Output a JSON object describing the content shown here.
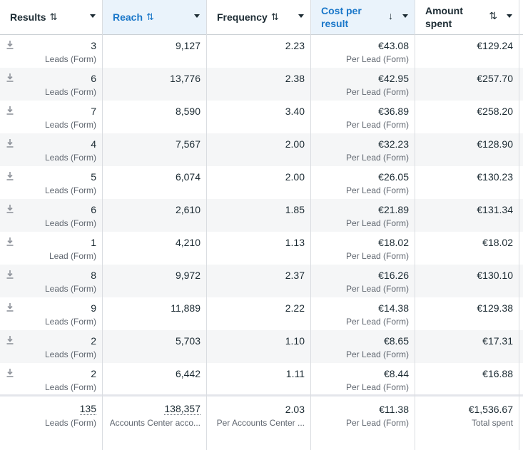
{
  "colors": {
    "accent": "#1a77c9",
    "sorted_bg": "#eaf3fb",
    "alt_row": "#f5f6f7"
  },
  "columns": {
    "results": {
      "label": "Results",
      "sort_icon": "⇅"
    },
    "reach": {
      "label": "Reach",
      "sort_icon": "⇅"
    },
    "frequency": {
      "label": "Frequency",
      "sort_icon": "⇅"
    },
    "cost_per_result": {
      "label_line1": "Cost per",
      "label_line2": "result",
      "sort_icon": "↓"
    },
    "amount_spent": {
      "label_line1": "Amount",
      "label_line2": "spent",
      "sort_icon": "⇅"
    }
  },
  "rows": [
    {
      "results": "3",
      "results_type": "Leads (Form)",
      "reach": "9,127",
      "frequency": "2.23",
      "cost": "€43.08",
      "cost_type": "Per Lead (Form)",
      "spent": "€129.24"
    },
    {
      "results": "6",
      "results_type": "Leads (Form)",
      "reach": "13,776",
      "frequency": "2.38",
      "cost": "€42.95",
      "cost_type": "Per Lead (Form)",
      "spent": "€257.70"
    },
    {
      "results": "7",
      "results_type": "Leads (Form)",
      "reach": "8,590",
      "frequency": "3.40",
      "cost": "€36.89",
      "cost_type": "Per Lead (Form)",
      "spent": "€258.20"
    },
    {
      "results": "4",
      "results_type": "Leads (Form)",
      "reach": "7,567",
      "frequency": "2.00",
      "cost": "€32.23",
      "cost_type": "Per Lead (Form)",
      "spent": "€128.90"
    },
    {
      "results": "5",
      "results_type": "Leads (Form)",
      "reach": "6,074",
      "frequency": "2.00",
      "cost": "€26.05",
      "cost_type": "Per Lead (Form)",
      "spent": "€130.23"
    },
    {
      "results": "6",
      "results_type": "Leads (Form)",
      "reach": "2,610",
      "frequency": "1.85",
      "cost": "€21.89",
      "cost_type": "Per Lead (Form)",
      "spent": "€131.34"
    },
    {
      "results": "1",
      "results_type": "Lead (Form)",
      "reach": "4,210",
      "frequency": "1.13",
      "cost": "€18.02",
      "cost_type": "Per Lead (Form)",
      "spent": "€18.02"
    },
    {
      "results": "8",
      "results_type": "Leads (Form)",
      "reach": "9,972",
      "frequency": "2.37",
      "cost": "€16.26",
      "cost_type": "Per Lead (Form)",
      "spent": "€130.10"
    },
    {
      "results": "9",
      "results_type": "Leads (Form)",
      "reach": "11,889",
      "frequency": "2.22",
      "cost": "€14.38",
      "cost_type": "Per Lead (Form)",
      "spent": "€129.38"
    },
    {
      "results": "2",
      "results_type": "Leads (Form)",
      "reach": "5,703",
      "frequency": "1.10",
      "cost": "€8.65",
      "cost_type": "Per Lead (Form)",
      "spent": "€17.31"
    },
    {
      "results": "2",
      "results_type": "Leads (Form)",
      "reach": "6,442",
      "frequency": "1.11",
      "cost": "€8.44",
      "cost_type": "Per Lead (Form)",
      "spent": "€16.88"
    }
  ],
  "totals": {
    "results": "135",
    "results_type": "Leads (Form)",
    "reach": "138,357",
    "reach_type": "Accounts Center acco...",
    "frequency": "2.03",
    "frequency_type": "Per Accounts Center ...",
    "cost": "€11.38",
    "cost_type": "Per Lead (Form)",
    "spent": "€1,536.67",
    "spent_type": "Total spent"
  }
}
